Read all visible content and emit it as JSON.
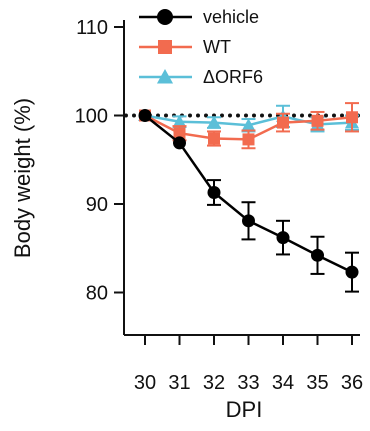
{
  "chart_data": {
    "type": "line",
    "xlabel": "DPI",
    "ylabel": "Body weight (%)",
    "x": [
      30,
      31,
      32,
      33,
      34,
      35,
      36
    ],
    "x_ticks": [
      "30",
      "31",
      "32",
      "33",
      "34",
      "35",
      "36"
    ],
    "y_ticks": [
      "80",
      "90",
      "100",
      "110"
    ],
    "ylim": [
      75,
      110
    ],
    "reference_line": {
      "y": 100,
      "style": "dotted"
    },
    "grid": false,
    "legend_position": "top-right",
    "series": [
      {
        "name": "vehicle",
        "marker": "circle",
        "color": "#000000",
        "values": [
          100,
          96.9,
          91.3,
          88.1,
          86.2,
          84.2,
          82.3
        ],
        "errors": [
          0,
          0,
          1.4,
          2.1,
          1.9,
          2.1,
          2.2
        ]
      },
      {
        "name": "WT",
        "marker": "square",
        "color": "#f26b4f",
        "values": [
          100,
          98.0,
          97.4,
          97.3,
          99.2,
          99.4,
          99.8
        ],
        "errors": [
          0,
          0.8,
          0.8,
          1.0,
          1.0,
          1.0,
          1.6
        ]
      },
      {
        "name": "ΔORF6",
        "marker": "triangle",
        "color": "#5bbfd8",
        "values": [
          100,
          99.3,
          99.2,
          98.9,
          99.9,
          99.0,
          99.2
        ],
        "errors": [
          0,
          0.6,
          0.6,
          0.7,
          1.2,
          0.8,
          0.8
        ]
      }
    ]
  }
}
